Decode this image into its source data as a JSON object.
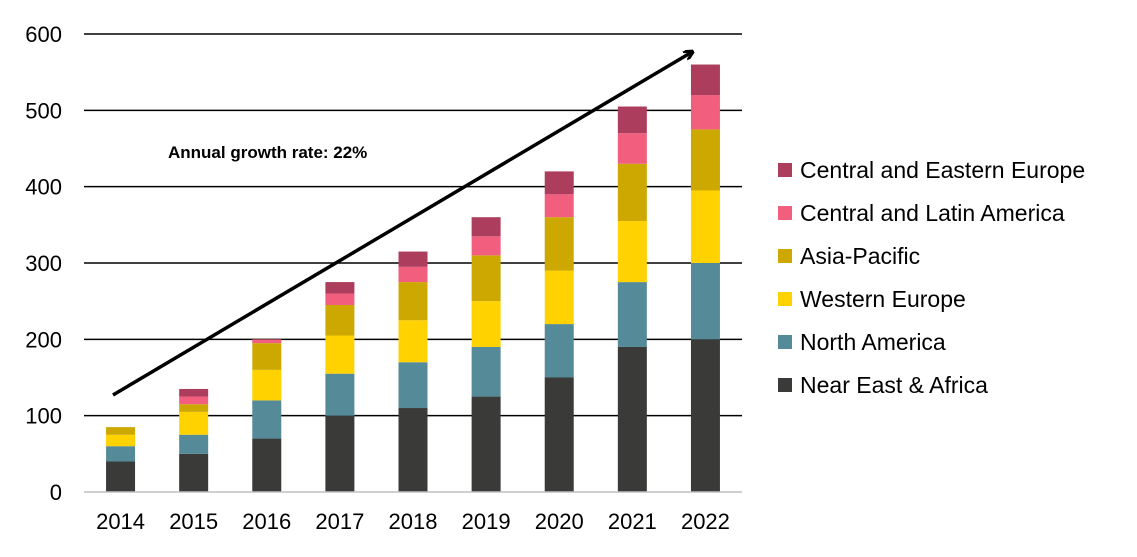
{
  "chart_data": {
    "type": "bar",
    "stacked": true,
    "title": "",
    "xlabel": "",
    "ylabel": "",
    "categories": [
      "2014",
      "2015",
      "2016",
      "2017",
      "2018",
      "2019",
      "2020",
      "2021",
      "2022"
    ],
    "ylim": [
      0,
      600
    ],
    "yticks": [
      0,
      100,
      200,
      300,
      400,
      500,
      600
    ],
    "grid": "horizontal",
    "legend_position": "right",
    "annotation": "Annual growth rate: 22%",
    "series": [
      {
        "name": "Near East & Africa",
        "color": "#3a3a38",
        "values": [
          40,
          50,
          70,
          100,
          110,
          125,
          150,
          190,
          200
        ]
      },
      {
        "name": "North America",
        "color": "#558b98",
        "values": [
          20,
          25,
          50,
          55,
          60,
          65,
          70,
          85,
          100
        ]
      },
      {
        "name": "Western Europe",
        "color": "#ffd200",
        "values": [
          15,
          30,
          40,
          50,
          55,
          60,
          70,
          80,
          95
        ]
      },
      {
        "name": "Asia-Pacific",
        "color": "#cca800",
        "values": [
          10,
          10,
          35,
          40,
          50,
          60,
          70,
          75,
          80
        ]
      },
      {
        "name": "Central and Latin America",
        "color": "#f15e7e",
        "values": [
          0,
          10,
          5,
          15,
          20,
          25,
          30,
          40,
          45
        ]
      },
      {
        "name": "Central and Eastern Europe",
        "color": "#ad3d5c",
        "values": [
          0,
          10,
          0,
          15,
          20,
          25,
          30,
          35,
          40
        ]
      }
    ]
  }
}
